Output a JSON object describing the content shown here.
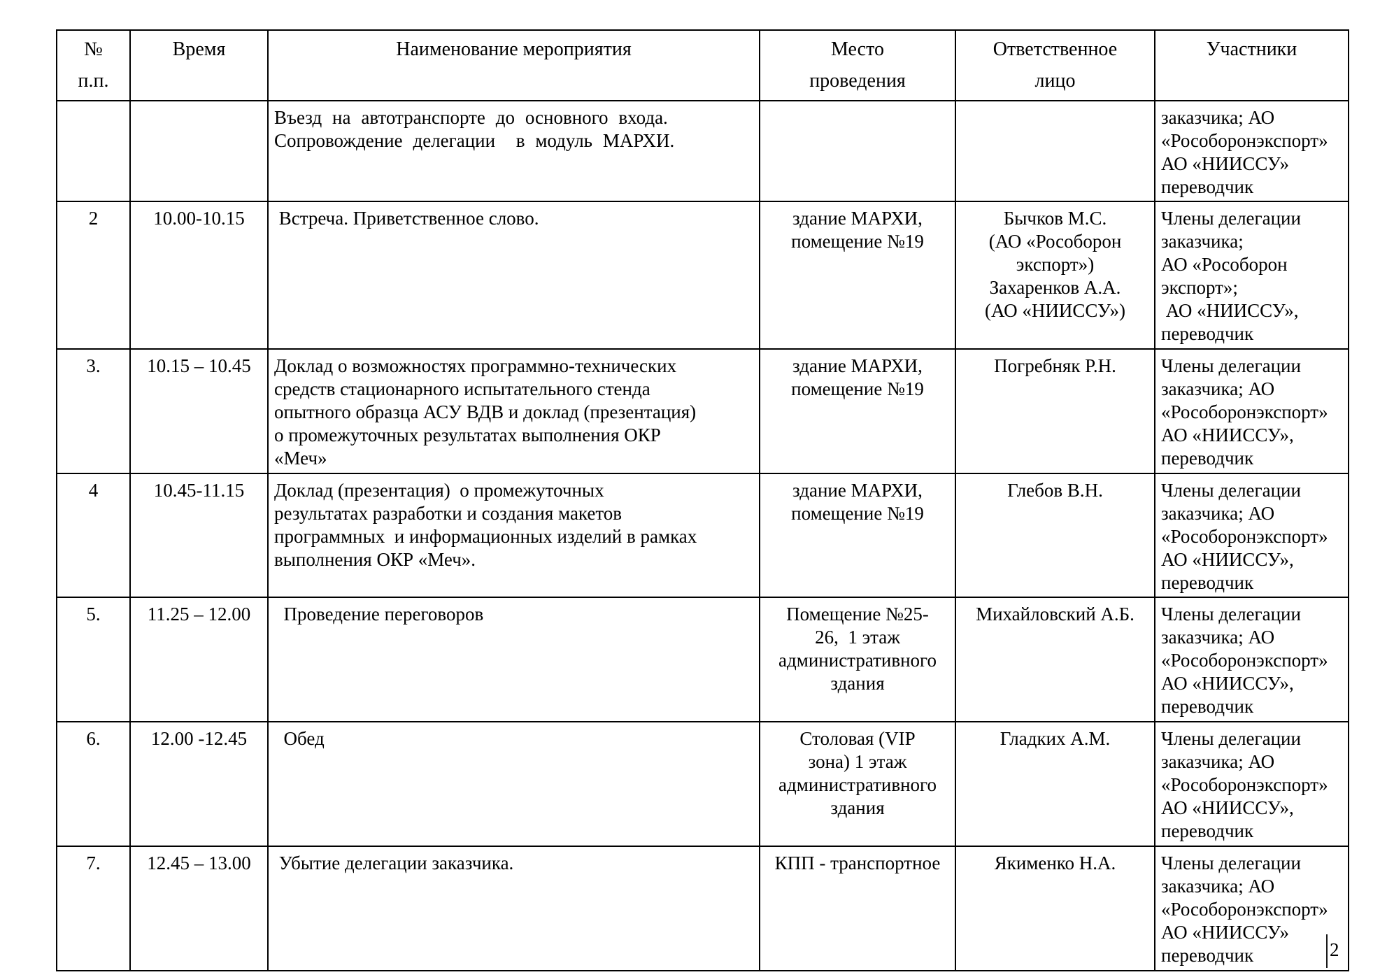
{
  "table": {
    "columns": [
      {
        "label": "№\nп.п."
      },
      {
        "label": "Время"
      },
      {
        "label": "Наименование мероприятия"
      },
      {
        "label": "Место\nпроведения"
      },
      {
        "label": "Ответственное\nлицо"
      },
      {
        "label": "Участники"
      }
    ],
    "rows": [
      {
        "num": "",
        "time": "",
        "name": "Въезд на автотранспорте до основного входа.\nСопровождение делегации  в модуль МАРХИ.",
        "place": "",
        "responsible": "",
        "participants": "заказчика; АО\n«Рособоронэкспорт»\nАО «НИИССУ»\nпереводчик"
      },
      {
        "num": "2",
        "time": "10.00-10.15",
        "name": " Встреча. Приветственное слово.",
        "place": "здание МАРХИ,\nпомещение №19",
        "responsible": "Бычков М.С.\n(АО «Рособорон\nэкспорт»)\nЗахаренков А.А.\n(АО «НИИССУ»)",
        "participants": "Члены делегации\nзаказчика;\nАО «Рособорон\nэкспорт»;\n АО «НИИССУ»,\nпереводчик"
      },
      {
        "num": "3.",
        "time": "10.15 – 10.45",
        "name": "Доклад о возможностях программно-технических\nсредств стационарного испытательного стенда\nопытного образца АСУ ВДВ и доклад (презентация)\nо промежуточных результатах выполнения ОКР\n«Меч»",
        "place": "здание МАРХИ,\nпомещение №19",
        "responsible": "Погребняк Р.Н.",
        "participants": "Члены делегации\nзаказчика; АО\n«Рособоронэкспорт»\nАО «НИИССУ»,\nпереводчик"
      },
      {
        "num": "4",
        "time": "10.45-11.15",
        "name": "Доклад (презентация)  о промежуточных\nрезультатах разработки и создания макетов\nпрограммных  и информационных изделий в рамках\nвыполнения ОКР «Меч».",
        "place": "здание МАРХИ,\nпомещение №19",
        "responsible": "Глебов В.Н.",
        "participants": "Члены делегации\nзаказчика; АО\n«Рособоронэкспорт»\nАО «НИИССУ»,\nпереводчик"
      },
      {
        "num": "5.",
        "time": "11.25 – 12.00",
        "name": "  Проведение переговоров",
        "place": "Помещение №25-\n26,  1 этаж\nадминистративного\nздания",
        "responsible": "Михайловский А.Б.",
        "participants": "Члены делегации\nзаказчика; АО\n«Рособоронэкспорт»\nАО «НИИССУ»,\nпереводчик"
      },
      {
        "num": "6.",
        "time": "12.00 -12.45",
        "name": "  Обед",
        "place": "Столовая (VIP\nзона) 1 этаж\nадминистративного\nздания",
        "responsible": "Гладких А.М.",
        "participants": "Члены делегации\nзаказчика; АО\n«Рособоронэкспорт»\nАО «НИИССУ»,\nпереводчик"
      },
      {
        "num": "7.",
        "time": "12.45 – 13.00",
        "name": " Убытие делегации заказчика.",
        "place": "КПП - транспортное",
        "responsible": "Якименко Н.А.",
        "participants": "Члены делегации\nзаказчика; АО\n«Рособоронэкспорт»\nАО «НИИССУ»\nпереводчик"
      }
    ]
  },
  "page_number": "2"
}
